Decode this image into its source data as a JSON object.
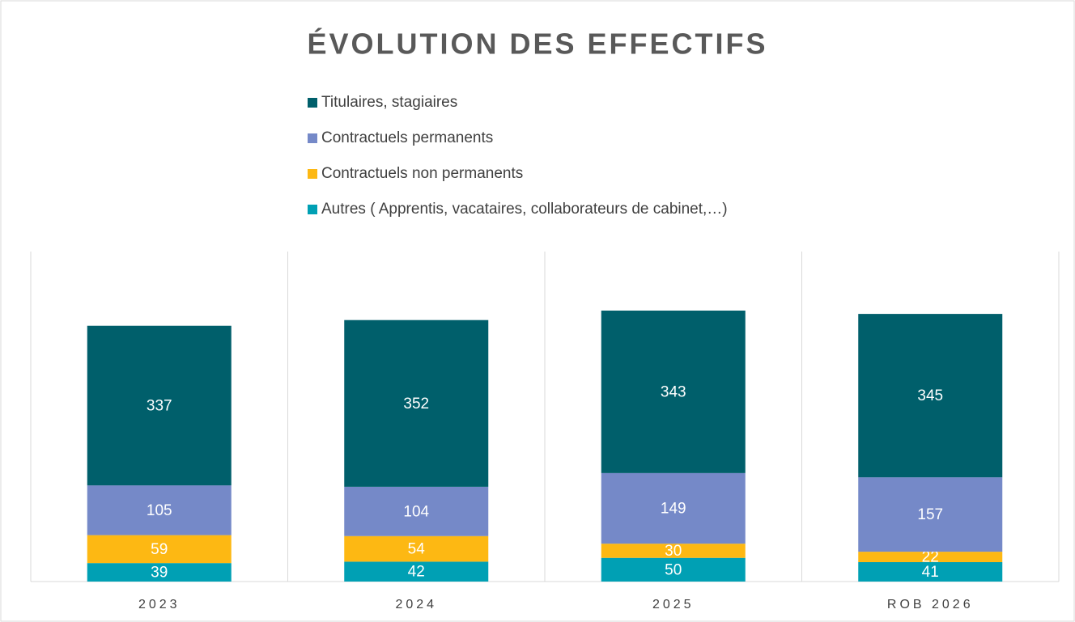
{
  "chart_data": {
    "type": "stacked_bar",
    "title": "ÉVOLUTION DES EFFECTIFS",
    "categories": [
      "2023",
      "2024",
      "2025",
      "ROB 2026"
    ],
    "series": [
      {
        "name": "Autres ( Apprentis, vacataires, collaborateurs de cabinet,…)",
        "color": "#00a0b4",
        "values": [
          39,
          42,
          50,
          41
        ]
      },
      {
        "name": "Contractuels non permanents",
        "color": "#fdb813",
        "values": [
          59,
          54,
          30,
          22
        ]
      },
      {
        "name": "Contractuels permanents",
        "color": "#7589c8",
        "values": [
          105,
          104,
          149,
          157
        ]
      },
      {
        "name": "Titulaires, stagiaires",
        "color": "#005f6b",
        "values": [
          337,
          352,
          343,
          345
        ]
      }
    ]
  }
}
